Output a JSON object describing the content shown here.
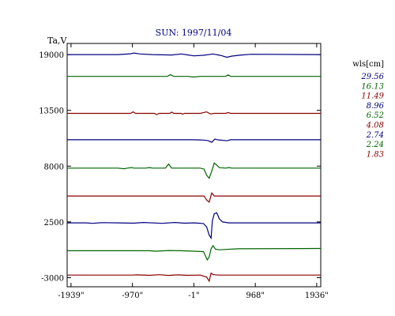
{
  "chart_data": {
    "type": "line",
    "title": "SUN: 1997/11/04",
    "ylabel": "Ta,V",
    "ylim": [
      -3900,
      20100
    ],
    "xlim": [
      -2000,
      2000
    ],
    "y_ticks": [
      {
        "value": 19000,
        "label": "19000"
      },
      {
        "value": 13500,
        "label": "13500"
      },
      {
        "value": 8000,
        "label": "8000"
      },
      {
        "value": 2500,
        "label": "2500"
      },
      {
        "value": -3000,
        "label": "-3000"
      }
    ],
    "x_ticks": [
      {
        "value": -1939,
        "label": "-1939\""
      },
      {
        "value": -970,
        "label": "-970\""
      },
      {
        "value": -1,
        "label": "-1\""
      },
      {
        "value": 968,
        "label": "968\""
      },
      {
        "value": 1936,
        "label": "1936\""
      }
    ],
    "legend_title": "wls[cm]",
    "legend_position": "right",
    "series": [
      {
        "name": "29.56",
        "color": "#000080",
        "baseline": 19000,
        "points": [
          [
            -2000,
            0
          ],
          [
            -1200,
            0
          ],
          [
            -1000,
            80
          ],
          [
            -950,
            160
          ],
          [
            -850,
            60
          ],
          [
            -650,
            0
          ],
          [
            -350,
            -40
          ],
          [
            -200,
            60
          ],
          [
            -100,
            -30
          ],
          [
            0,
            -120
          ],
          [
            150,
            -70
          ],
          [
            300,
            60
          ],
          [
            420,
            -80
          ],
          [
            520,
            -260
          ],
          [
            600,
            -150
          ],
          [
            750,
            -40
          ],
          [
            900,
            30
          ],
          [
            2000,
            0
          ]
        ]
      },
      {
        "name": "16.13",
        "color": "#006400",
        "baseline": 16850,
        "points": [
          [
            -2000,
            0
          ],
          [
            -420,
            0
          ],
          [
            -370,
            180
          ],
          [
            -320,
            0
          ],
          [
            -100,
            0
          ],
          [
            0,
            -60
          ],
          [
            100,
            0
          ],
          [
            500,
            0
          ],
          [
            540,
            150
          ],
          [
            580,
            0
          ],
          [
            2000,
            0
          ]
        ]
      },
      {
        "name": "11.49",
        "color": "#8b0000",
        "baseline": 13200,
        "points": [
          [
            -2000,
            0
          ],
          [
            -1000,
            0
          ],
          [
            -960,
            150
          ],
          [
            -920,
            0
          ],
          [
            -620,
            0
          ],
          [
            -590,
            -120
          ],
          [
            -550,
            0
          ],
          [
            -380,
            0
          ],
          [
            -350,
            130
          ],
          [
            -320,
            0
          ],
          [
            -200,
            0
          ],
          [
            -180,
            -80
          ],
          [
            -150,
            0
          ],
          [
            100,
            0
          ],
          [
            200,
            150
          ],
          [
            260,
            -60
          ],
          [
            320,
            0
          ],
          [
            500,
            0
          ],
          [
            540,
            80
          ],
          [
            580,
            0
          ],
          [
            2000,
            0
          ]
        ]
      },
      {
        "name": "8.96",
        "color": "#000080",
        "baseline": 10600,
        "points": [
          [
            -2000,
            0
          ],
          [
            0,
            0
          ],
          [
            150,
            -30
          ],
          [
            220,
            -80
          ],
          [
            280,
            -250
          ],
          [
            330,
            60
          ],
          [
            370,
            0
          ],
          [
            520,
            -100
          ],
          [
            580,
            0
          ],
          [
            2000,
            0
          ]
        ]
      },
      {
        "name": "6.52",
        "color": "#006400",
        "baseline": 7800,
        "points": [
          [
            -2000,
            0
          ],
          [
            -1200,
            0
          ],
          [
            -1100,
            -60
          ],
          [
            -1050,
            0
          ],
          [
            -980,
            60
          ],
          [
            -950,
            0
          ],
          [
            -800,
            0
          ],
          [
            -760,
            0
          ],
          [
            -700,
            60
          ],
          [
            -650,
            0
          ],
          [
            -450,
            0
          ],
          [
            -400,
            400
          ],
          [
            -350,
            0
          ],
          [
            100,
            0
          ],
          [
            160,
            -100
          ],
          [
            200,
            -700
          ],
          [
            240,
            -1000
          ],
          [
            280,
            -300
          ],
          [
            320,
            500
          ],
          [
            360,
            300
          ],
          [
            400,
            50
          ],
          [
            500,
            0
          ],
          [
            550,
            60
          ],
          [
            600,
            0
          ],
          [
            2000,
            0
          ]
        ]
      },
      {
        "name": "4.08",
        "color": "#8b0000",
        "baseline": 5050,
        "points": [
          [
            -2000,
            0
          ],
          [
            0,
            0
          ],
          [
            160,
            0
          ],
          [
            200,
            -400
          ],
          [
            240,
            -600
          ],
          [
            280,
            300
          ],
          [
            320,
            0
          ],
          [
            2000,
            0
          ]
        ]
      },
      {
        "name": "2.74",
        "color": "#000080",
        "baseline": 2400,
        "points": [
          [
            -2000,
            0
          ],
          [
            -1700,
            0
          ],
          [
            -1600,
            -40
          ],
          [
            -1450,
            30
          ],
          [
            -1200,
            0
          ],
          [
            -950,
            -30
          ],
          [
            -800,
            40
          ],
          [
            -500,
            -40
          ],
          [
            -300,
            40
          ],
          [
            -150,
            -30
          ],
          [
            0,
            0
          ],
          [
            150,
            -60
          ],
          [
            200,
            -400
          ],
          [
            240,
            -1200
          ],
          [
            270,
            -1500
          ],
          [
            290,
            200
          ],
          [
            320,
            900
          ],
          [
            360,
            1000
          ],
          [
            400,
            400
          ],
          [
            450,
            100
          ],
          [
            550,
            0
          ],
          [
            2000,
            0
          ]
        ]
      },
      {
        "name": "2.24",
        "color": "#006400",
        "baseline": -350,
        "points": [
          [
            -2000,
            0
          ],
          [
            -700,
            0
          ],
          [
            -600,
            -40
          ],
          [
            -400,
            30
          ],
          [
            -200,
            0
          ],
          [
            150,
            -80
          ],
          [
            210,
            -900
          ],
          [
            240,
            -600
          ],
          [
            270,
            200
          ],
          [
            300,
            500
          ],
          [
            340,
            150
          ],
          [
            400,
            100
          ],
          [
            700,
            200
          ],
          [
            2000,
            230
          ]
        ]
      },
      {
        "name": "1.83",
        "color": "#8b0000",
        "baseline": -2750,
        "points": [
          [
            -2000,
            0
          ],
          [
            -950,
            0
          ],
          [
            -900,
            30
          ],
          [
            -700,
            -20
          ],
          [
            -550,
            40
          ],
          [
            -400,
            -30
          ],
          [
            -250,
            30
          ],
          [
            -100,
            -20
          ],
          [
            100,
            0
          ],
          [
            200,
            -200
          ],
          [
            240,
            -600
          ],
          [
            270,
            200
          ],
          [
            300,
            50
          ],
          [
            380,
            0
          ],
          [
            2000,
            0
          ]
        ]
      }
    ]
  }
}
